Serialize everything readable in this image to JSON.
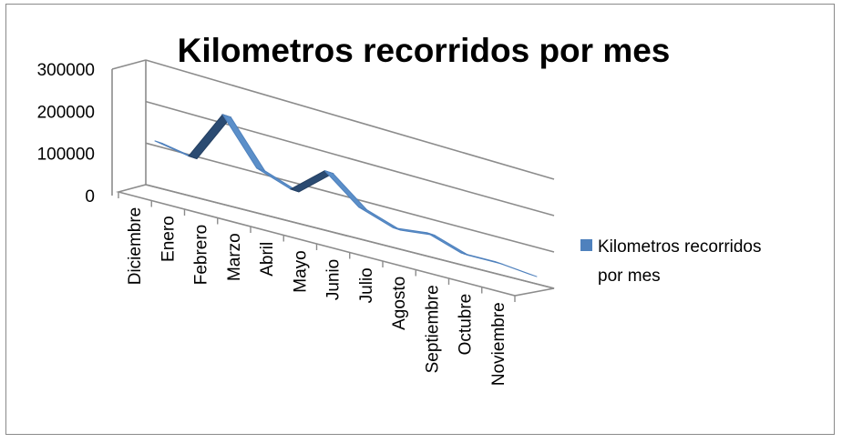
{
  "chart_data": {
    "type": "line",
    "style": "3d-ribbon",
    "title": "Kilometros recorridos por mes",
    "xlabel": "",
    "ylabel": "",
    "categories": [
      "Diciembre",
      "Enero",
      "Febrero",
      "Marzo",
      "Abril",
      "Mayo",
      "Junio",
      "Julio",
      "Agosto",
      "Septiembre",
      "Octubre",
      "Noviembre"
    ],
    "series": [
      {
        "name": "Kilometros recorridos por mes",
        "values": [
          110000,
          95000,
          220000,
          110000,
          80000,
          150000,
          80000,
          50000,
          60000,
          30000,
          30000,
          20000
        ],
        "color": "#4f81bd"
      }
    ],
    "y_ticks": [
      "300000",
      "200000",
      "100000",
      "0"
    ],
    "ylim": [
      0,
      300000
    ],
    "grid": true,
    "legend_position": "right"
  }
}
